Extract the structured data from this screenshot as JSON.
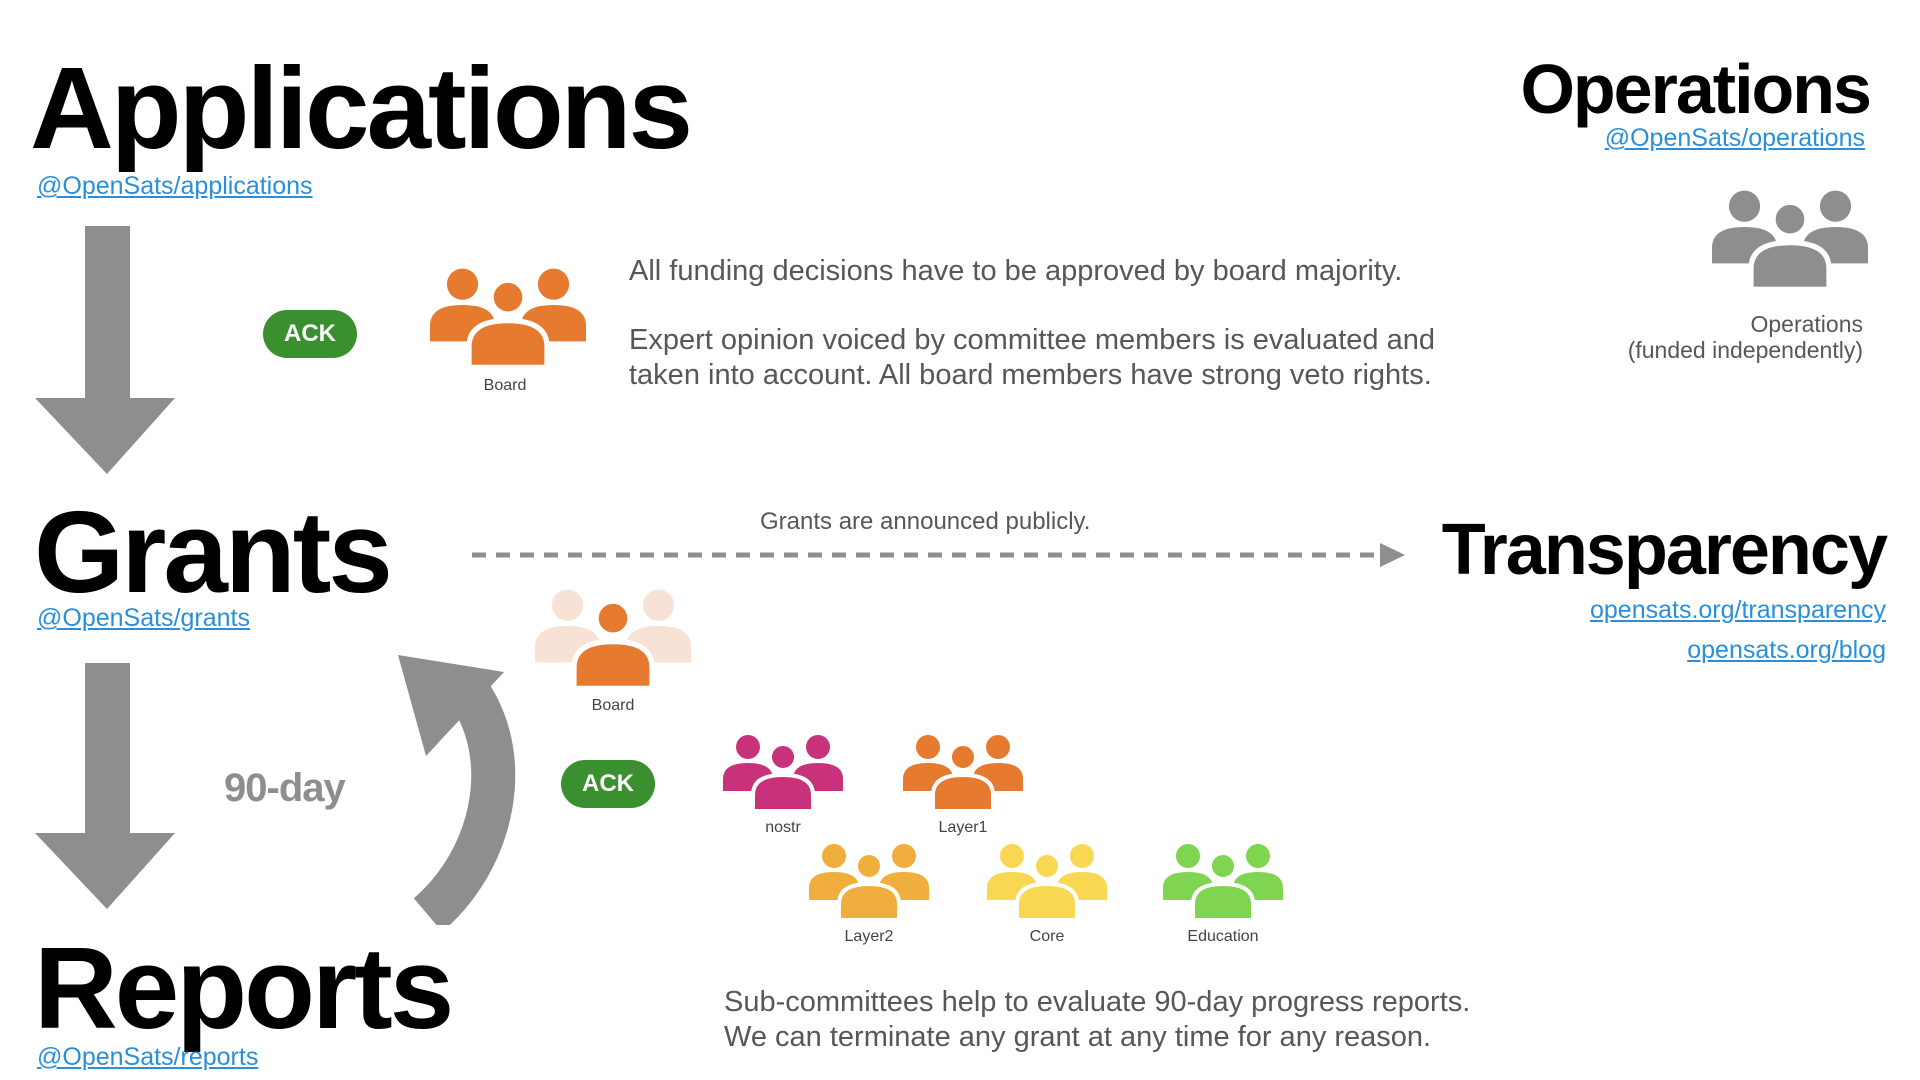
{
  "stages": {
    "applications": {
      "title": "Applications",
      "link": "@OpenSats/applications"
    },
    "grants": {
      "title": "Grants",
      "link": "@OpenSats/grants"
    },
    "reports": {
      "title": "Reports",
      "link": "@OpenSats/reports"
    }
  },
  "operations": {
    "title": "Operations",
    "link": "@OpenSats/operations",
    "icon_label_line1": "Operations",
    "icon_label_line2": "(funded independently)"
  },
  "transparency": {
    "title": "Transparency",
    "link1": "opensats.org/transparency",
    "link2": "opensats.org/blog"
  },
  "board_section": {
    "ack": "ACK",
    "board_label": "Board",
    "text1": "All funding decisions have to be approved by board majority.",
    "text2_line1": "Expert opinion voiced by committee members is evaluated and",
    "text2_line2": "taken into account. All board members have strong veto rights."
  },
  "announce_text": "Grants are announced publicly.",
  "cycle_label": "90-day",
  "committee_section": {
    "ack": "ACK",
    "board_label": "Board",
    "committees": [
      {
        "name": "nostr",
        "color": "#c8327a"
      },
      {
        "name": "Layer1",
        "color": "#e67a2e"
      },
      {
        "name": "Layer2",
        "color": "#f0ae3c"
      },
      {
        "name": "Core",
        "color": "#f8d852"
      },
      {
        "name": "Education",
        "color": "#7fd450"
      }
    ],
    "text_line1": "Sub-committees help to evaluate 90-day progress reports.",
    "text_line2": "We can terminate any grant at any time for any reason."
  },
  "colors": {
    "arrow_gray": "#8e8e8e",
    "board_orange": "#e67a2e",
    "board_faded": "#f8e2d6",
    "operations_gray": "#8e8e8e",
    "ack_green": "#3a8f2e",
    "link_blue": "#2a8fd8"
  },
  "icons": {
    "people_group": "people-group-icon"
  }
}
